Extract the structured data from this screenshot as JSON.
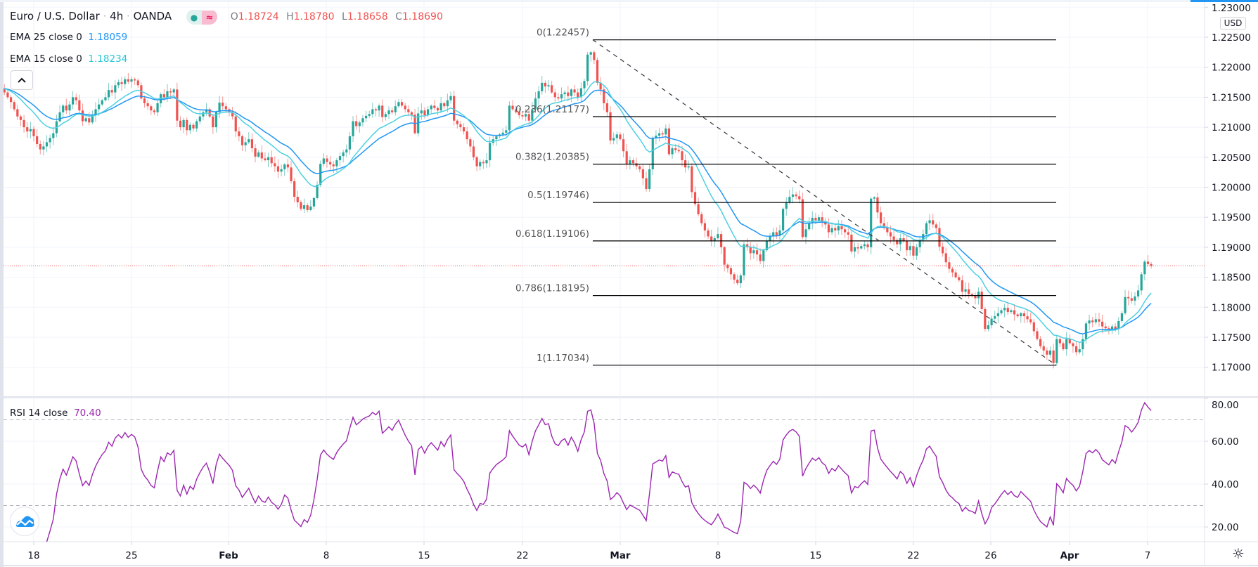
{
  "header": {
    "symbol": "Euro / U.S. Dollar",
    "interval": "4h",
    "exchange": "OANDA",
    "separator": "·",
    "status_icons": [
      "market-open-dot-icon",
      "replay-wave-icon"
    ],
    "ohlc": {
      "o_label": "O",
      "o": "1.18724",
      "h_label": "H",
      "h": "1.18780",
      "l_label": "L",
      "l": "1.18658",
      "c_label": "C",
      "c": "1.18690"
    }
  },
  "indicators": {
    "ema25": {
      "label": "EMA 25 close 0",
      "value": "1.18059",
      "color": "#2196f3",
      "period": 25
    },
    "ema15": {
      "label": "EMA 15 close 0",
      "value": "1.18234",
      "color": "#26c6da",
      "period": 15
    },
    "rsi": {
      "label": "RSI 14 close",
      "value": "70.40",
      "color": "#9c27b0",
      "period": 14
    }
  },
  "currency_badge": "USD",
  "collapse_icon": "chevron-up-icon",
  "settings_icon": "gear-icon",
  "colors": {
    "up": "#26a69a",
    "down": "#ef5350",
    "last_price_line": "#ef5350",
    "fib_line": "#000000",
    "grid": "#f0f3fa"
  },
  "chart_data": [
    {
      "type": "candlestick",
      "title": "Euro / U.S. Dollar · 4h · OANDA",
      "x_ticks": [
        "18",
        "25",
        "Feb",
        "8",
        "15",
        "22",
        "Mar",
        "8",
        "15",
        "22",
        "26",
        "Apr",
        "7"
      ],
      "y_ticks": [
        "1.23000",
        "1.22500",
        "1.22000",
        "1.21500",
        "1.21000",
        "1.20500",
        "1.20000",
        "1.19500",
        "1.19000",
        "1.18500",
        "1.18000",
        "1.17500",
        "1.17000"
      ],
      "ylim": [
        1.1655,
        1.2305
      ],
      "last_price": 1.1869,
      "grid": true,
      "closes": [
        1.2165,
        1.2158,
        1.215,
        1.2142,
        1.213,
        1.2118,
        1.2112,
        1.21,
        1.2093,
        1.2097,
        1.2085,
        1.2072,
        1.2063,
        1.2068,
        1.2075,
        1.2082,
        1.209,
        1.211,
        1.2125,
        1.2136,
        1.2128,
        1.2138,
        1.215,
        1.2145,
        1.2128,
        1.211,
        1.2115,
        1.2108,
        1.212,
        1.213,
        1.2138,
        1.2145,
        1.215,
        1.2162,
        1.2158,
        1.217,
        1.2175,
        1.2172,
        1.218,
        1.2176,
        1.218,
        1.2178,
        1.217,
        1.2148,
        1.214,
        1.2135,
        1.2128,
        1.2125,
        1.214,
        1.2155,
        1.215,
        1.216,
        1.2158,
        1.2163,
        1.2111,
        1.21,
        1.2112,
        1.2095,
        1.2104,
        1.2098,
        1.211,
        1.2118,
        1.2125,
        1.213,
        1.2118,
        1.21,
        1.2125,
        1.2141,
        1.2135,
        1.213,
        1.2125,
        1.2118,
        1.2093,
        1.2085,
        1.207,
        1.2075,
        1.208,
        1.2065,
        1.2051,
        1.2058,
        1.2048,
        1.2045,
        1.205,
        1.204,
        1.2035,
        1.2026,
        1.203,
        1.2038,
        1.2033,
        1.201,
        1.1984,
        1.1975,
        1.1964,
        1.197,
        1.1962,
        1.1968,
        1.1982,
        1.2004,
        1.2039,
        1.2048,
        1.2042,
        1.2038,
        1.2035,
        1.2045,
        1.2052,
        1.2058,
        1.2063,
        1.2085,
        1.211,
        1.2102,
        1.2108,
        1.2115,
        1.2119,
        1.2122,
        1.213,
        1.2128,
        1.2136,
        1.2117,
        1.2122,
        1.2128,
        1.2125,
        1.2135,
        1.2142,
        1.2136,
        1.213,
        1.2125,
        1.2121,
        1.209,
        1.2123,
        1.2128,
        1.212,
        1.213,
        1.2136,
        1.2132,
        1.2128,
        1.214,
        1.2135,
        1.2145,
        1.2152,
        1.2111,
        1.2105,
        1.21,
        1.2093,
        1.208,
        1.2068,
        1.205,
        1.2035,
        1.2042,
        1.204,
        1.2045,
        1.2074,
        1.208,
        1.2085,
        1.2088,
        1.2091,
        1.2095,
        1.2136,
        1.213,
        1.2125,
        1.212,
        1.2118,
        1.2122,
        1.2111,
        1.213,
        1.2148,
        1.216,
        1.2174,
        1.2168,
        1.217,
        1.2158,
        1.215,
        1.2148,
        1.2155,
        1.2158,
        1.2152,
        1.2163,
        1.2158,
        1.215,
        1.2165,
        1.2177,
        1.2221,
        1.2225,
        1.2212,
        1.2174,
        1.2163,
        1.214,
        1.2125,
        1.2078,
        1.2082,
        1.2088,
        1.208,
        1.206,
        1.2039,
        1.2045,
        1.204,
        1.2035,
        1.203,
        1.2015,
        1.1997,
        1.203,
        1.2082,
        1.2086,
        1.209,
        1.2088,
        1.2098,
        1.2055,
        1.2065,
        1.2062,
        1.206,
        1.2045,
        1.2033,
        1.2035,
        1.1992,
        1.1972,
        1.1955,
        1.194,
        1.1928,
        1.1918,
        1.191,
        1.1915,
        1.1922,
        1.19,
        1.1871,
        1.1865,
        1.1855,
        1.1846,
        1.184,
        1.1853,
        1.1905,
        1.19,
        1.189,
        1.1895,
        1.1888,
        1.1877,
        1.1895,
        1.191,
        1.1918,
        1.1925,
        1.192,
        1.1928,
        1.1964,
        1.1975,
        1.1984,
        1.1988,
        1.1985,
        1.198,
        1.1917,
        1.193,
        1.194,
        1.1949,
        1.1945,
        1.195,
        1.1942,
        1.1938,
        1.1925,
        1.1932,
        1.1928,
        1.1935,
        1.193,
        1.1925,
        1.1921,
        1.1893,
        1.19,
        1.1898,
        1.1902,
        1.1905,
        1.19,
        1.1981,
        1.1983,
        1.1958,
        1.194,
        1.1932,
        1.1925,
        1.1918,
        1.1912,
        1.1905,
        1.1915,
        1.191,
        1.1895,
        1.1902,
        1.1886,
        1.19,
        1.1912,
        1.1922,
        1.194,
        1.1945,
        1.1938,
        1.1932,
        1.1901,
        1.189,
        1.1875,
        1.1864,
        1.1858,
        1.185,
        1.1845,
        1.1826,
        1.183,
        1.1822,
        1.182,
        1.1815,
        1.1826,
        1.1797,
        1.1764,
        1.177,
        1.1781,
        1.1785,
        1.179,
        1.1795,
        1.1799,
        1.1792,
        1.1795,
        1.1788,
        1.1785,
        1.179,
        1.1785,
        1.178,
        1.1775,
        1.176,
        1.1747,
        1.1735,
        1.1728,
        1.1721,
        1.1728,
        1.1707,
        1.1747,
        1.174,
        1.173,
        1.1747,
        1.174,
        1.1735,
        1.1725,
        1.173,
        1.1747,
        1.1773,
        1.1778,
        1.1775,
        1.178,
        1.1776,
        1.1768,
        1.1765,
        1.1762,
        1.1768,
        1.1764,
        1.1777,
        1.179,
        1.1817,
        1.1815,
        1.1811,
        1.1818,
        1.1828,
        1.1855,
        1.1876,
        1.1872,
        1.1869
      ],
      "fibonacci": {
        "levels": [
          {
            "ratio": "0",
            "price": 1.22457,
            "label": "0(1.22457)"
          },
          {
            "ratio": "0.236",
            "price": 1.21177,
            "label": "0.236(1.21177)"
          },
          {
            "ratio": "0.382",
            "price": 1.20385,
            "label": "0.382(1.20385)"
          },
          {
            "ratio": "0.5",
            "price": 1.19746,
            "label": "0.5(1.19746)"
          },
          {
            "ratio": "0.618",
            "price": 1.19106,
            "label": "0.618(1.19106)"
          },
          {
            "ratio": "0.786",
            "price": 1.18195,
            "label": "0.786(1.18195)"
          },
          {
            "ratio": "1",
            "price": 1.17034,
            "label": "1(1.17034)"
          }
        ],
        "trend_line": {
          "from_price": 1.22457,
          "to_price": 1.17034,
          "style": "dashed"
        }
      }
    },
    {
      "type": "line",
      "name": "RSI 14 close",
      "y_ticks": [
        "80.00",
        "60.00",
        "40.00",
        "20.00"
      ],
      "ylim": [
        14,
        80.5
      ],
      "bands": [
        70,
        30
      ],
      "last_value": 70.4
    }
  ]
}
